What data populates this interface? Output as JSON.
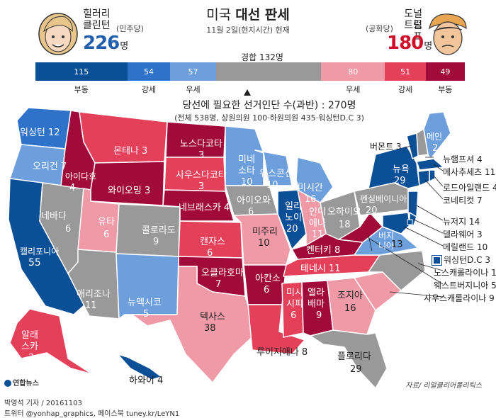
{
  "colors": {
    "clinton_solid": "#0b4f96",
    "clinton_likely": "#2f72c9",
    "clinton_lean": "#6c9fdc",
    "tossup": "#999999",
    "trump_lean": "#ef9aa6",
    "trump_likely": "#e5405a",
    "trump_solid": "#a10b3c"
  },
  "header": {
    "title_light": "미국",
    "title_bold": "대선 판세",
    "subtitle": "11월 2일(현지시간) 현재"
  },
  "clinton": {
    "name_line1": "힐러리",
    "name_line2": "클린턴",
    "party": "(민주당)",
    "votes": "226",
    "unit": "명"
  },
  "trump": {
    "name_line1": "도널드",
    "name_line2": "트럼프",
    "party": "(공화당)",
    "votes": "180",
    "unit": "명"
  },
  "tossup_label": "경합",
  "tossup_votes": "132명",
  "needed": {
    "text": "당선에 필요한 선거인단 수(과반) : 270명",
    "detail": "(전체 538명, 상원의원 100·하원의원 435·워싱턴D.C 3)"
  },
  "chart_data": {
    "type": "bar",
    "title": "미국 대선 판세",
    "subtitle": "11월 2일(현지시간) 현재",
    "categories": [
      "부동",
      "강세",
      "우세",
      "경합",
      "우세",
      "강세",
      "부동"
    ],
    "series": [
      {
        "name": "힐러리 클린턴 (민주당)",
        "values": [
          115,
          54,
          57,
          null,
          null,
          null,
          null
        ]
      },
      {
        "name": "경합",
        "values": [
          null,
          null,
          null,
          132,
          null,
          null,
          null
        ]
      },
      {
        "name": "도널드 트럼프 (공화당)",
        "values": [
          null,
          null,
          null,
          null,
          80,
          51,
          49
        ]
      }
    ],
    "segments": [
      {
        "label": "115",
        "value": 115,
        "category": "부동",
        "color": "#0b4f96"
      },
      {
        "label": "54",
        "value": 54,
        "category": "강세",
        "color": "#2f72c9"
      },
      {
        "label": "57",
        "value": 57,
        "category": "우세",
        "color": "#6c9fdc"
      },
      {
        "label": "",
        "value": 132,
        "category": "경합",
        "color": "#999999"
      },
      {
        "label": "80",
        "value": 80,
        "category": "우세",
        "color": "#ef9aa6"
      },
      {
        "label": "51",
        "value": 51,
        "category": "강세",
        "color": "#e5405a"
      },
      {
        "label": "49",
        "value": 49,
        "category": "부동",
        "color": "#a10b3c"
      }
    ],
    "threshold": 270,
    "total": 538,
    "states": [
      {
        "name": "워싱턴",
        "votes": 12,
        "status": "clinton_likely"
      },
      {
        "name": "오리건",
        "votes": 7,
        "status": "clinton_lean"
      },
      {
        "name": "캘리포니아",
        "votes": 55,
        "status": "clinton_solid"
      },
      {
        "name": "네바다",
        "votes": 6,
        "status": "tossup"
      },
      {
        "name": "아이다호",
        "votes": 4,
        "status": "trump_solid"
      },
      {
        "name": "몬태나",
        "votes": 3,
        "status": "trump_likely"
      },
      {
        "name": "와이오밍",
        "votes": 3,
        "status": "trump_solid"
      },
      {
        "name": "유타",
        "votes": 6,
        "status": "trump_lean"
      },
      {
        "name": "애리조나",
        "votes": 11,
        "status": "tossup"
      },
      {
        "name": "콜로라도",
        "votes": 9,
        "status": "tossup"
      },
      {
        "name": "뉴멕시코",
        "votes": 5,
        "status": "clinton_lean"
      },
      {
        "name": "노스다코타",
        "votes": 3,
        "status": "trump_solid"
      },
      {
        "name": "사우스다코타",
        "votes": 3,
        "status": "trump_likely"
      },
      {
        "name": "네브래스카",
        "votes": 4,
        "status": "trump_solid"
      },
      {
        "name": "캔자스",
        "votes": 6,
        "status": "trump_likely"
      },
      {
        "name": "오클라호마",
        "votes": 7,
        "status": "trump_solid"
      },
      {
        "name": "텍사스",
        "votes": 38,
        "status": "trump_lean"
      },
      {
        "name": "미네소타",
        "votes": 10,
        "status": "clinton_lean"
      },
      {
        "name": "아이오와",
        "votes": 6,
        "status": "tossup"
      },
      {
        "name": "미주리",
        "votes": 10,
        "status": "trump_lean"
      },
      {
        "name": "아칸소",
        "votes": 6,
        "status": "trump_solid"
      },
      {
        "name": "루이지애나",
        "votes": 8,
        "status": "trump_likely"
      },
      {
        "name": "위스콘신",
        "votes": 10,
        "status": "clinton_lean"
      },
      {
        "name": "일리노이",
        "votes": 20,
        "status": "clinton_solid"
      },
      {
        "name": "미시간",
        "votes": 16,
        "status": "clinton_lean"
      },
      {
        "name": "인디애나",
        "votes": 11,
        "status": "trump_lean"
      },
      {
        "name": "오하이오",
        "votes": 18,
        "status": "tossup"
      },
      {
        "name": "켄터키",
        "votes": 8,
        "status": "trump_solid"
      },
      {
        "name": "테네시",
        "votes": 11,
        "status": "trump_likely"
      },
      {
        "name": "미시시피",
        "votes": 6,
        "status": "trump_likely"
      },
      {
        "name": "앨라배마",
        "votes": 9,
        "status": "trump_solid"
      },
      {
        "name": "조지아",
        "votes": 16,
        "status": "trump_lean"
      },
      {
        "name": "플로리다",
        "votes": 29,
        "status": "tossup"
      },
      {
        "name": "사우스캐롤라이나",
        "votes": 9,
        "status": "trump_lean"
      },
      {
        "name": "노스캐롤라이나",
        "votes": 15,
        "status": "tossup"
      },
      {
        "name": "버지니아",
        "votes": 13,
        "status": "clinton_lean"
      },
      {
        "name": "웨스트버지니아",
        "votes": 5,
        "status": "trump_solid"
      },
      {
        "name": "펜실베이니아",
        "votes": 20,
        "status": "tossup"
      },
      {
        "name": "뉴욕",
        "votes": 29,
        "status": "clinton_solid"
      },
      {
        "name": "버몬트",
        "votes": 3,
        "status": "clinton_solid"
      },
      {
        "name": "메인",
        "votes": 2,
        "status": "clinton_lean"
      },
      {
        "name": "뉴햄프셔",
        "votes": 4,
        "status": "tossup"
      },
      {
        "name": "메사추세츠",
        "votes": 11,
        "status": "clinton_solid"
      },
      {
        "name": "로드아일랜드",
        "votes": 4,
        "status": "clinton_solid"
      },
      {
        "name": "코네티컷",
        "votes": 7,
        "status": "clinton_solid"
      },
      {
        "name": "뉴저지",
        "votes": 14,
        "status": "clinton_solid"
      },
      {
        "name": "델라웨어",
        "votes": 3,
        "status": "clinton_solid"
      },
      {
        "name": "메릴랜드",
        "votes": 10,
        "status": "clinton_solid"
      },
      {
        "name": "워싱턴D.C",
        "votes": 3,
        "status": "clinton_solid"
      },
      {
        "name": "알래스카",
        "votes": 3,
        "status": "trump_likely"
      },
      {
        "name": "하와이",
        "votes": 4,
        "status": "clinton_solid"
      }
    ]
  },
  "map_labels": {
    "wa": "워싱턴 12",
    "or": "오리건 7",
    "ca1": "캘리포니아",
    "ca2": "55",
    "nv1": "네바다",
    "nv2": "6",
    "id1": "아이다호",
    "id2": "4",
    "mt": "몬태나 3",
    "wy": "와이오밍 3",
    "ut1": "유타",
    "ut2": "6",
    "az1": "애리조나",
    "az2": "11",
    "co1": "콜로라도",
    "co2": "9",
    "nm1": "뉴멕시코",
    "nm2": "5",
    "nd1": "노스다코타",
    "nd2": "3",
    "sd1": "사우스다코타",
    "sd2": "3",
    "ne": "네브래스카 4",
    "ks1": "캔자스",
    "ks2": "6",
    "ok1": "오클라호마",
    "ok2": "7",
    "tx1": "텍사스",
    "tx2": "38",
    "mn1": "미네",
    "mn2": "소타",
    "mn3": "10",
    "ia1": "아이오와",
    "ia2": "6",
    "mo1": "미주리",
    "mo2": "10",
    "ar1": "아칸소",
    "ar2": "6",
    "la": "루이지애나 8",
    "wi1": "위스콘신",
    "wi2": "10",
    "il1": "일리",
    "il2": "노이",
    "il3": "20",
    "mi1": "미시간",
    "mi2": "16",
    "in1": "인디",
    "in2": "애나",
    "in3": "11",
    "oh1": "오하이오",
    "oh2": "18",
    "ky": "켄터키 8",
    "tn": "테네시 11",
    "ms1": "미시",
    "ms2": "시피",
    "ms3": "6",
    "al1": "앨라",
    "al2": "배마",
    "al3": "9",
    "ga1": "조지아",
    "ga2": "16",
    "fl1": "플로리다",
    "fl2": "29",
    "va1": "버지",
    "va2": "니아",
    "va3": "13",
    "pa1": "펜실베이니아",
    "pa2": "20",
    "ny1": "뉴욕",
    "ny2": "29",
    "me1": "메인",
    "me2": "2",
    "ak1": "알래",
    "ak2": "스카",
    "ak3": "3",
    "hi": "하와이 4"
  },
  "right_labels": {
    "vt": "버몬트 3",
    "nh": "뉴햄프셔 4",
    "ma": "메사추세츠 11",
    "ri": "로드아일랜드 4",
    "ct": "코네티컷 7",
    "nj": "뉴저지 14",
    "de": "델라웨어 3",
    "md": "메릴랜드 10",
    "dc": "워싱턴D.C 3",
    "nc": "노스캐롤라이나 15",
    "wv": "웨스트버지니아 5",
    "sc": "사우스캐롤라이나 9"
  },
  "footer": {
    "source": "자료/ 리얼클리어폴리틱스",
    "logo": "연합뉴스",
    "credit_line1": "박영석 기자 / 20161103",
    "credit_line2": "트위터 @yonhap_graphics, 페이스북 tuney.kr/LeYN1"
  }
}
